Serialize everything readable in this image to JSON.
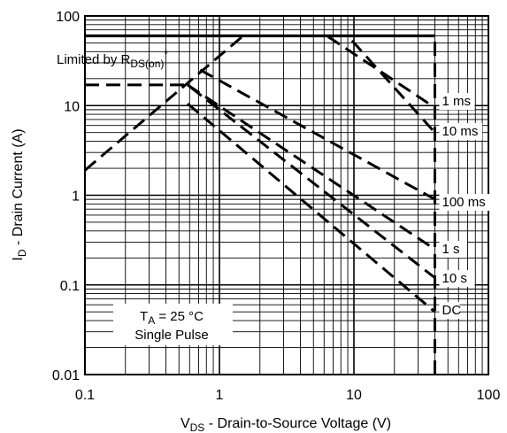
{
  "chart_data": {
    "type": "line",
    "title": "",
    "xlabel": {
      "main": "V",
      "sub": "DS",
      "rest": " - Drain-to-Source Voltage (V)"
    },
    "ylabel": {
      "main": "I",
      "sub": "D",
      "rest": " - Drain Current (A)"
    },
    "xscale": "log",
    "yscale": "log",
    "xlim": [
      0.1,
      100
    ],
    "ylim": [
      0.01,
      100
    ],
    "grid": true,
    "xticks": [
      {
        "value": 0.1,
        "label": "0.1"
      },
      {
        "value": 1,
        "label": "1"
      },
      {
        "value": 10,
        "label": "10"
      },
      {
        "value": 100,
        "label": "100"
      }
    ],
    "yticks": [
      {
        "value": 0.01,
        "label": "0.01"
      },
      {
        "value": 0.1,
        "label": "0.1"
      },
      {
        "value": 1,
        "label": "1"
      },
      {
        "value": 10,
        "label": "10"
      },
      {
        "value": 100,
        "label": "100"
      }
    ],
    "limit_lines": [
      {
        "name": "current-limit",
        "style": "solid",
        "x": [
          0.1,
          40
        ],
        "y": [
          60,
          60
        ]
      },
      {
        "name": "voltage-limit",
        "style": "dashed",
        "x": [
          40,
          40
        ],
        "y": [
          0.01,
          60
        ]
      }
    ],
    "series": [
      {
        "name": "1 ms",
        "style": "dashed",
        "x": [
          1.5,
          6.3,
          40
        ],
        "y": [
          60,
          60,
          9.5
        ]
      },
      {
        "name": "10 ms",
        "style": "dashed",
        "x": [
          0.1,
          1.5,
          9,
          40
        ],
        "y": [
          1.9,
          60,
          60,
          5.0
        ]
      },
      {
        "name": "100 ms",
        "style": "dashed",
        "x": [
          0.72,
          40
        ],
        "y": [
          25,
          0.9
        ]
      },
      {
        "name": "1 s",
        "style": "dashed",
        "x": [
          0.58,
          40
        ],
        "y": [
          17,
          0.25
        ]
      },
      {
        "name": "10 s",
        "style": "dashed",
        "x": [
          0.1,
          0.58,
          40
        ],
        "y": [
          17,
          17,
          0.12
        ]
      },
      {
        "name": "DC",
        "style": "dashed",
        "x": [
          0.58,
          40
        ],
        "y": [
          10.5,
          0.05
        ]
      }
    ],
    "annotations": {
      "limited": {
        "prefix": "Limited by R",
        "sub": "DS(on)",
        "sup": "*"
      },
      "temp": {
        "main": "T",
        "sub": "A",
        "rest": " = 25 °C"
      },
      "pulse": "Single Pulse"
    },
    "curve_labels": [
      {
        "text": "1 ms",
        "x": 40,
        "y": 9.5
      },
      {
        "text": "10 ms",
        "x": 40,
        "y": 5.0
      },
      {
        "text": "100 ms",
        "x": 40,
        "y": 0.9
      },
      {
        "text": "1 s",
        "x": 40,
        "y": 0.25
      },
      {
        "text": "10 s",
        "x": 40,
        "y": 0.12
      },
      {
        "text": "DC",
        "x": 40,
        "y": 0.05
      }
    ]
  }
}
